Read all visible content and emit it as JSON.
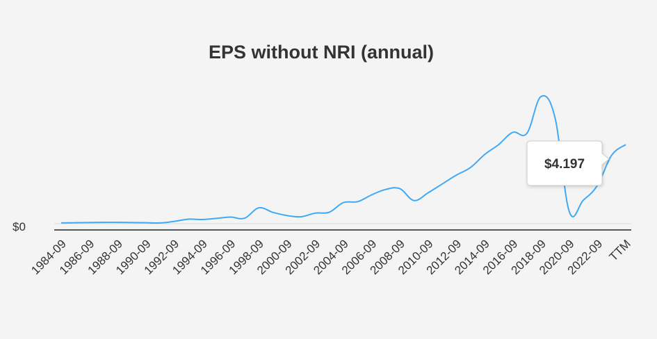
{
  "chart_data": {
    "type": "line",
    "title": "EPS without NRI (annual)",
    "y_zero_label": "$0",
    "x_tick_labels": [
      "1984-09",
      "1986-09",
      "1988-09",
      "1990-09",
      "1992-09",
      "1994-09",
      "1996-09",
      "1998-09",
      "2000-09",
      "2002-09",
      "2004-09",
      "2006-09",
      "2008-09",
      "2010-09",
      "2012-09",
      "2014-09",
      "2016-09",
      "2018-09",
      "2020-09",
      "2022-09",
      "TTM"
    ],
    "series": [
      {
        "name": "EPS without NRI",
        "color": "#3fa9f5",
        "x": [
          "1984-09",
          "1985-09",
          "1986-09",
          "1987-09",
          "1988-09",
          "1989-09",
          "1990-09",
          "1991-09",
          "1992-09",
          "1993-09",
          "1994-09",
          "1995-09",
          "1996-09",
          "1997-09",
          "1998-09",
          "1999-09",
          "2000-09",
          "2001-09",
          "2002-09",
          "2003-09",
          "2004-09",
          "2005-09",
          "2006-09",
          "2007-09",
          "2008-09",
          "2009-09",
          "2010-09",
          "2011-09",
          "2012-09",
          "2013-09",
          "2014-09",
          "2015-09",
          "2016-09",
          "2017-09",
          "2018-09",
          "2019-09",
          "2020-09",
          "2021-09",
          "2022-09",
          "2023-09",
          "TTM"
        ],
        "values": [
          0.04,
          0.05,
          0.06,
          0.07,
          0.07,
          0.06,
          0.05,
          0.04,
          0.12,
          0.24,
          0.22,
          0.28,
          0.35,
          0.29,
          0.84,
          0.6,
          0.43,
          0.37,
          0.56,
          0.61,
          1.12,
          1.17,
          1.53,
          1.82,
          1.86,
          1.23,
          1.64,
          2.11,
          2.58,
          2.98,
          3.67,
          4.2,
          4.85,
          4.8,
          6.75,
          5.6,
          0.64,
          1.25,
          2.04,
          3.63,
          4.197
        ]
      }
    ],
    "ylim": [
      -0.3,
      7.8
    ],
    "tooltip": {
      "label": "$4.197",
      "point": "TTM"
    }
  }
}
